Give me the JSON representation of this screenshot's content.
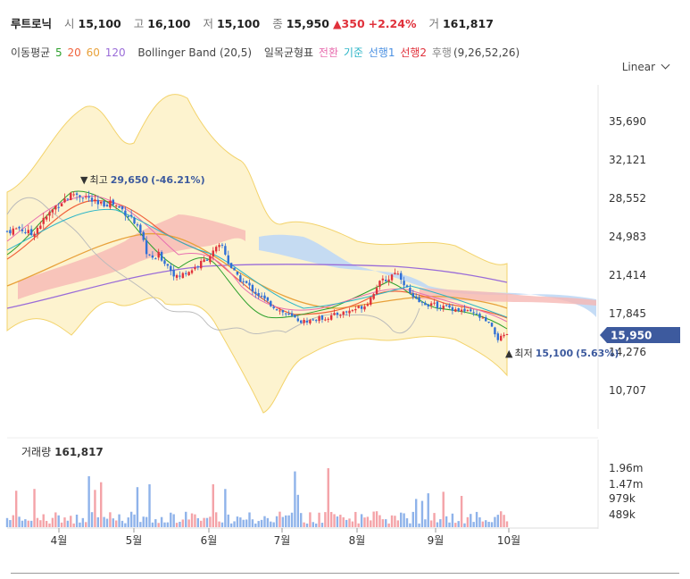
{
  "header": {
    "name": "루트로닉",
    "open_label": "시",
    "open": "15,100",
    "high_label": "고",
    "high": "16,100",
    "low_label": "저",
    "low": "15,100",
    "close_label": "종",
    "close": "15,950",
    "change": "▲350",
    "change_pct": "+2.24%",
    "volume_label": "거",
    "volume": "161,817"
  },
  "indicators": {
    "ma_label": "이동평균",
    "ma5": "5",
    "ma20": "20",
    "ma60": "60",
    "ma120": "120",
    "bollinger": "Bollinger Band (20,5)",
    "ichimoku_label": "일목균형표",
    "tenkan": "전환",
    "kijun": "기준",
    "span1": "선행1",
    "span2": "선행2",
    "lagging": "후행",
    "params": "(9,26,52,26)"
  },
  "scale_mode": "Linear",
  "colors": {
    "up": "#e0313b",
    "down": "#2f6fd6",
    "ma5": "#2ca02c",
    "ma20": "#f0623c",
    "ma60": "#e8a13a",
    "ma120": "#9a6cd8",
    "price_tag": "#3d5a9e"
  },
  "chart_data": {
    "type": "candlestick",
    "price_axis_ticks": [
      "35,690",
      "32,121",
      "28,552",
      "24,983",
      "21,414",
      "17,845",
      "14,276",
      "10,707"
    ],
    "ylim": [
      8000,
      38500
    ],
    "x_ticks": [
      "4월",
      "5월",
      "6월",
      "7월",
      "8월",
      "9월",
      "10월"
    ],
    "current_price": "15,950",
    "annotation_high": {
      "marker": "▼",
      "label": "최고",
      "value": "29,650",
      "pct": "(-46.21%)"
    },
    "annotation_low": {
      "marker": "▲",
      "label": "최저",
      "value": "15,100",
      "pct": "(5.63%)"
    },
    "close_path": [
      [
        0,
        25500
      ],
      [
        4,
        25800
      ],
      [
        8,
        25200
      ],
      [
        12,
        26500
      ],
      [
        16,
        27800
      ],
      [
        19,
        28500
      ],
      [
        22,
        29000
      ],
      [
        26,
        28700
      ],
      [
        30,
        27900
      ],
      [
        34,
        28200
      ],
      [
        38,
        27500
      ],
      [
        41,
        26800
      ],
      [
        44,
        25200
      ],
      [
        46,
        23600
      ],
      [
        48,
        22800
      ],
      [
        50,
        23300
      ],
      [
        53,
        22300
      ],
      [
        56,
        21200
      ],
      [
        60,
        21800
      ],
      [
        63,
        22300
      ],
      [
        66,
        23000
      ],
      [
        69,
        23800
      ],
      [
        71,
        24200
      ],
      [
        73,
        22600
      ],
      [
        76,
        21200
      ],
      [
        79,
        20600
      ],
      [
        82,
        19800
      ],
      [
        86,
        18900
      ],
      [
        89,
        18300
      ],
      [
        92,
        17800
      ],
      [
        95,
        17400
      ],
      [
        97,
        17100
      ],
      [
        100,
        17200
      ],
      [
        103,
        17400
      ],
      [
        106,
        17500
      ],
      [
        109,
        17800
      ],
      [
        112,
        18000
      ],
      [
        115,
        18300
      ],
      [
        118,
        18600
      ],
      [
        120,
        19300
      ],
      [
        122,
        20400
      ],
      [
        124,
        20900
      ],
      [
        126,
        21100
      ],
      [
        128,
        21800
      ],
      [
        130,
        21200
      ],
      [
        132,
        20200
      ],
      [
        134,
        19200
      ],
      [
        137,
        18800
      ],
      [
        140,
        18700
      ],
      [
        143,
        18500
      ],
      [
        146,
        18400
      ],
      [
        149,
        18200
      ],
      [
        152,
        18000
      ],
      [
        155,
        17700
      ],
      [
        157,
        17300
      ],
      [
        159,
        16900
      ],
      [
        161,
        16000
      ],
      [
        162,
        15500
      ],
      [
        164,
        15700
      ],
      [
        165,
        15950
      ]
    ],
    "volume_axis_ticks": [
      "1.96m",
      "1.47m",
      "979k",
      "489k"
    ],
    "volume_label": "거래량",
    "volume_value": "161,817"
  }
}
